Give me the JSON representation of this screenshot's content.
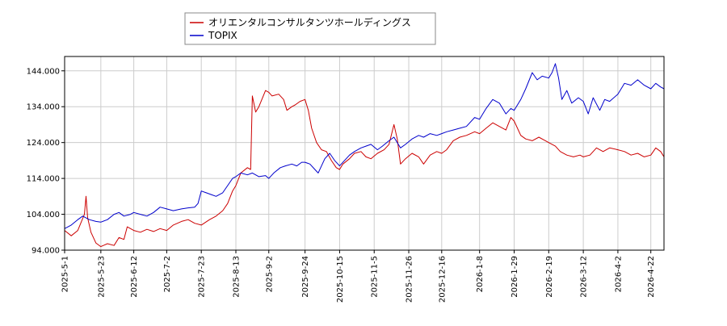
{
  "chart_data": {
    "type": "line",
    "grid": true,
    "legend_placement": "top",
    "ylim": [
      94,
      148
    ],
    "y_ticks": [
      94,
      104,
      114,
      124,
      134,
      144
    ],
    "y_tick_labels": [
      "94.000",
      "104.000",
      "114.000",
      "124.000",
      "134.000",
      "144.000"
    ],
    "x_range": [
      "2025-05-01",
      "2026-04-30"
    ],
    "x_ticks": [
      "2025-5-1",
      "2025-5-23",
      "2025-6-12",
      "2025-7-2",
      "2025-7-23",
      "2025-8-13",
      "2025-9-2",
      "2025-9-24",
      "2025-10-15",
      "2025-11-5",
      "2025-11-26",
      "2025-12-16",
      "2026-1-8",
      "2026-1-29",
      "2026-2-19",
      "2026-3-12",
      "2026-4-2",
      "2026-4-22"
    ],
    "series": [
      {
        "name": "オリエンタルコンサルタンツホールディングス",
        "color": "#cc0000",
        "points": [
          [
            "2025-05-01",
            99.5
          ],
          [
            "2025-05-05",
            98.0
          ],
          [
            "2025-05-09",
            99.5
          ],
          [
            "2025-05-13",
            104.0
          ],
          [
            "2025-05-14",
            109.0
          ],
          [
            "2025-05-15",
            103.0
          ],
          [
            "2025-05-17",
            99.0
          ],
          [
            "2025-05-20",
            96.0
          ],
          [
            "2025-05-23",
            95.0
          ],
          [
            "2025-05-27",
            95.8
          ],
          [
            "2025-05-31",
            95.3
          ],
          [
            "2025-06-03",
            97.5
          ],
          [
            "2025-06-06",
            97.0
          ],
          [
            "2025-06-08",
            100.5
          ],
          [
            "2025-06-12",
            99.5
          ],
          [
            "2025-06-16",
            99.0
          ],
          [
            "2025-06-20",
            99.8
          ],
          [
            "2025-06-24",
            99.2
          ],
          [
            "2025-06-28",
            100.0
          ],
          [
            "2025-07-02",
            99.5
          ],
          [
            "2025-07-06",
            101.0
          ],
          [
            "2025-07-11",
            102.0
          ],
          [
            "2025-07-15",
            102.5
          ],
          [
            "2025-07-19",
            101.5
          ],
          [
            "2025-07-23",
            101.0
          ],
          [
            "2025-07-28",
            102.5
          ],
          [
            "2025-08-01",
            103.5
          ],
          [
            "2025-08-05",
            105.0
          ],
          [
            "2025-08-08",
            107.0
          ],
          [
            "2025-08-11",
            110.5
          ],
          [
            "2025-08-13",
            112.0
          ],
          [
            "2025-08-16",
            115.5
          ],
          [
            "2025-08-20",
            117.0
          ],
          [
            "2025-08-22",
            116.5
          ],
          [
            "2025-08-23",
            137.0
          ],
          [
            "2025-08-25",
            132.5
          ],
          [
            "2025-08-27",
            134.0
          ],
          [
            "2025-08-31",
            138.5
          ],
          [
            "2025-09-02",
            138.0
          ],
          [
            "2025-09-04",
            137.0
          ],
          [
            "2025-09-08",
            137.5
          ],
          [
            "2025-09-11",
            136.0
          ],
          [
            "2025-09-13",
            133.0
          ],
          [
            "2025-09-16",
            134.0
          ],
          [
            "2025-09-18",
            134.5
          ],
          [
            "2025-09-21",
            135.5
          ],
          [
            "2025-09-24",
            136.0
          ],
          [
            "2025-09-26",
            133.0
          ],
          [
            "2025-09-28",
            128.0
          ],
          [
            "2025-10-01",
            124.0
          ],
          [
            "2025-10-04",
            122.0
          ],
          [
            "2025-10-07",
            121.5
          ],
          [
            "2025-10-10",
            119.0
          ],
          [
            "2025-10-13",
            117.0
          ],
          [
            "2025-10-15",
            116.5
          ],
          [
            "2025-10-17",
            118.0
          ],
          [
            "2025-10-21",
            119.5
          ],
          [
            "2025-10-24",
            121.0
          ],
          [
            "2025-10-28",
            121.5
          ],
          [
            "2025-10-31",
            120.0
          ],
          [
            "2025-11-03",
            119.5
          ],
          [
            "2025-11-07",
            121.0
          ],
          [
            "2025-11-11",
            122.0
          ],
          [
            "2025-11-14",
            123.5
          ],
          [
            "2025-11-17",
            129.0
          ],
          [
            "2025-11-19",
            125.0
          ],
          [
            "2025-11-21",
            118.0
          ],
          [
            "2025-11-24",
            119.5
          ],
          [
            "2025-11-28",
            121.0
          ],
          [
            "2025-12-02",
            120.0
          ],
          [
            "2025-12-05",
            118.0
          ],
          [
            "2025-12-09",
            120.5
          ],
          [
            "2025-12-13",
            121.5
          ],
          [
            "2025-12-16",
            121.0
          ],
          [
            "2025-12-19",
            122.0
          ],
          [
            "2025-12-23",
            124.5
          ],
          [
            "2025-12-27",
            125.5
          ],
          [
            "2025-12-31",
            126.0
          ],
          [
            "2026-01-05",
            127.0
          ],
          [
            "2026-01-08",
            126.5
          ],
          [
            "2026-01-12",
            128.0
          ],
          [
            "2026-01-16",
            129.5
          ],
          [
            "2026-01-20",
            128.5
          ],
          [
            "2026-01-24",
            127.5
          ],
          [
            "2026-01-27",
            131.0
          ],
          [
            "2026-01-29",
            130.0
          ],
          [
            "2026-02-02",
            126.0
          ],
          [
            "2026-02-05",
            125.0
          ],
          [
            "2026-02-09",
            124.5
          ],
          [
            "2026-02-13",
            125.5
          ],
          [
            "2026-02-17",
            124.5
          ],
          [
            "2026-02-19",
            124.0
          ],
          [
            "2026-02-23",
            123.0
          ],
          [
            "2026-02-26",
            121.5
          ],
          [
            "2026-03-02",
            120.5
          ],
          [
            "2026-03-06",
            120.0
          ],
          [
            "2026-03-10",
            120.5
          ],
          [
            "2026-03-12",
            120.0
          ],
          [
            "2026-03-16",
            120.5
          ],
          [
            "2026-03-20",
            122.5
          ],
          [
            "2026-03-24",
            121.5
          ],
          [
            "2026-03-28",
            122.5
          ],
          [
            "2026-04-02",
            122.0
          ],
          [
            "2026-04-06",
            121.5
          ],
          [
            "2026-04-10",
            120.5
          ],
          [
            "2026-04-14",
            121.0
          ],
          [
            "2026-04-18",
            120.0
          ],
          [
            "2026-04-22",
            120.5
          ],
          [
            "2026-04-25",
            122.5
          ],
          [
            "2026-04-28",
            121.5
          ],
          [
            "2026-04-30",
            120.0
          ]
        ]
      },
      {
        "name": "TOPIX",
        "color": "#0000cc",
        "points": [
          [
            "2025-05-01",
            100.0
          ],
          [
            "2025-05-05",
            101.0
          ],
          [
            "2025-05-09",
            102.5
          ],
          [
            "2025-05-12",
            103.5
          ],
          [
            "2025-05-16",
            102.5
          ],
          [
            "2025-05-20",
            102.0
          ],
          [
            "2025-05-23",
            101.8
          ],
          [
            "2025-05-27",
            102.5
          ],
          [
            "2025-05-31",
            104.0
          ],
          [
            "2025-06-03",
            104.5
          ],
          [
            "2025-06-06",
            103.5
          ],
          [
            "2025-06-10",
            104.0
          ],
          [
            "2025-06-12",
            104.5
          ],
          [
            "2025-06-16",
            104.0
          ],
          [
            "2025-06-20",
            103.5
          ],
          [
            "2025-06-24",
            104.5
          ],
          [
            "2025-06-28",
            106.0
          ],
          [
            "2025-07-02",
            105.5
          ],
          [
            "2025-07-06",
            105.0
          ],
          [
            "2025-07-11",
            105.5
          ],
          [
            "2025-07-15",
            105.8
          ],
          [
            "2025-07-19",
            106.0
          ],
          [
            "2025-07-21",
            107.0
          ],
          [
            "2025-07-23",
            110.5
          ],
          [
            "2025-07-26",
            110.0
          ],
          [
            "2025-07-29",
            109.5
          ],
          [
            "2025-08-01",
            109.0
          ],
          [
            "2025-08-05",
            110.0
          ],
          [
            "2025-08-08",
            112.0
          ],
          [
            "2025-08-11",
            114.0
          ],
          [
            "2025-08-13",
            114.5
          ],
          [
            "2025-08-16",
            115.5
          ],
          [
            "2025-08-20",
            115.0
          ],
          [
            "2025-08-23",
            115.5
          ],
          [
            "2025-08-27",
            114.5
          ],
          [
            "2025-08-31",
            114.8
          ],
          [
            "2025-09-02",
            114.0
          ],
          [
            "2025-09-05",
            115.5
          ],
          [
            "2025-09-09",
            117.0
          ],
          [
            "2025-09-12",
            117.5
          ],
          [
            "2025-09-16",
            118.0
          ],
          [
            "2025-09-19",
            117.5
          ],
          [
            "2025-09-22",
            118.5
          ],
          [
            "2025-09-24",
            118.5
          ],
          [
            "2025-09-27",
            118.0
          ],
          [
            "2025-09-30",
            116.5
          ],
          [
            "2025-10-02",
            115.5
          ],
          [
            "2025-10-06",
            119.5
          ],
          [
            "2025-10-09",
            121.0
          ],
          [
            "2025-10-12",
            119.0
          ],
          [
            "2025-10-15",
            117.5
          ],
          [
            "2025-10-18",
            119.0
          ],
          [
            "2025-10-21",
            120.5
          ],
          [
            "2025-10-24",
            121.5
          ],
          [
            "2025-10-28",
            122.5
          ],
          [
            "2025-10-31",
            123.0
          ],
          [
            "2025-11-03",
            123.5
          ],
          [
            "2025-11-07",
            122.0
          ],
          [
            "2025-11-10",
            123.0
          ],
          [
            "2025-11-14",
            124.5
          ],
          [
            "2025-11-17",
            125.5
          ],
          [
            "2025-11-19",
            124.0
          ],
          [
            "2025-11-21",
            122.5
          ],
          [
            "2025-11-24",
            123.5
          ],
          [
            "2025-11-28",
            125.0
          ],
          [
            "2025-12-02",
            126.0
          ],
          [
            "2025-12-05",
            125.5
          ],
          [
            "2025-12-09",
            126.5
          ],
          [
            "2025-12-13",
            126.0
          ],
          [
            "2025-12-16",
            126.5
          ],
          [
            "2025-12-19",
            127.0
          ],
          [
            "2025-12-23",
            127.5
          ],
          [
            "2025-12-27",
            128.0
          ],
          [
            "2025-12-31",
            128.5
          ],
          [
            "2026-01-05",
            131.0
          ],
          [
            "2026-01-08",
            130.5
          ],
          [
            "2026-01-12",
            133.5
          ],
          [
            "2026-01-16",
            136.0
          ],
          [
            "2026-01-20",
            135.0
          ],
          [
            "2026-01-24",
            132.0
          ],
          [
            "2026-01-27",
            133.5
          ],
          [
            "2026-01-29",
            133.0
          ],
          [
            "2026-02-02",
            136.0
          ],
          [
            "2026-02-05",
            139.0
          ],
          [
            "2026-02-09",
            143.5
          ],
          [
            "2026-02-12",
            141.5
          ],
          [
            "2026-02-15",
            142.5
          ],
          [
            "2026-02-19",
            142.0
          ],
          [
            "2026-02-21",
            143.5
          ],
          [
            "2026-02-23",
            146.0
          ],
          [
            "2026-02-25",
            142.0
          ],
          [
            "2026-02-27",
            136.0
          ],
          [
            "2026-03-02",
            138.5
          ],
          [
            "2026-03-05",
            135.0
          ],
          [
            "2026-03-09",
            136.5
          ],
          [
            "2026-03-12",
            135.5
          ],
          [
            "2026-03-15",
            132.0
          ],
          [
            "2026-03-18",
            136.5
          ],
          [
            "2026-03-22",
            133.0
          ],
          [
            "2026-03-25",
            136.0
          ],
          [
            "2026-03-28",
            135.5
          ],
          [
            "2026-04-02",
            137.5
          ],
          [
            "2026-04-06",
            140.5
          ],
          [
            "2026-04-10",
            140.0
          ],
          [
            "2026-04-14",
            141.5
          ],
          [
            "2026-04-18",
            140.0
          ],
          [
            "2026-04-22",
            139.0
          ],
          [
            "2026-04-25",
            140.5
          ],
          [
            "2026-04-28",
            139.5
          ],
          [
            "2026-04-30",
            139.0
          ]
        ]
      }
    ]
  }
}
